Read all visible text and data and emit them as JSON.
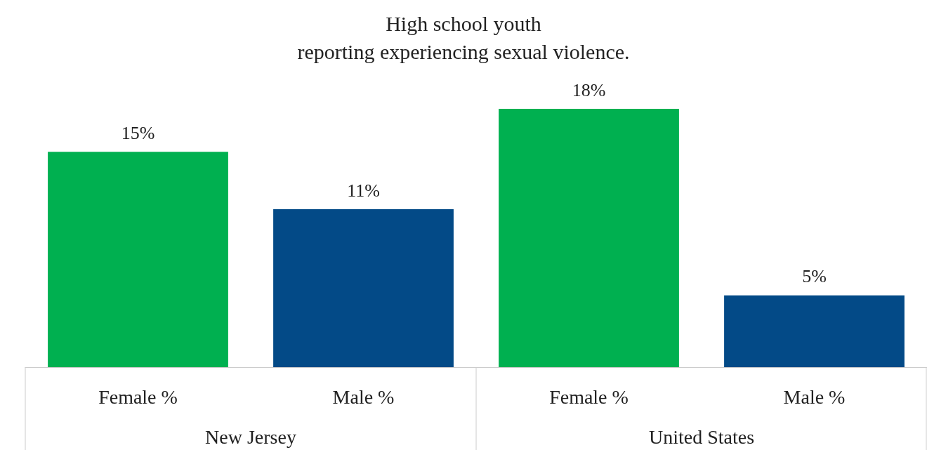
{
  "chart_data": {
    "type": "bar",
    "title": "High school youth\nreporting experiencing sexual violence.",
    "categories": [
      "Female %",
      "Male %",
      "Female %",
      "Male %"
    ],
    "values": [
      15,
      11,
      18,
      5
    ],
    "colors": [
      "#00b050",
      "#034a87",
      "#00b050",
      "#034a87"
    ],
    "value_labels": [
      "15%",
      "11%",
      "18%",
      "5%"
    ],
    "annotations": [
      "New Jersey",
      "United States"
    ],
    "grid": false
  }
}
